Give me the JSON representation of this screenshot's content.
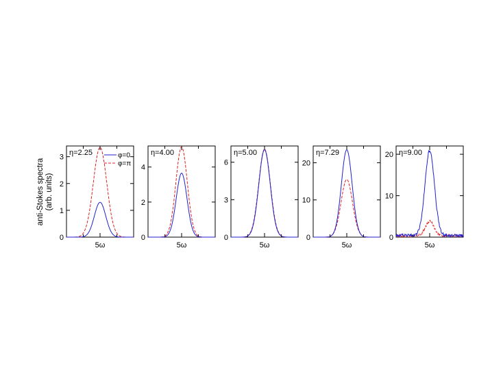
{
  "figure": {
    "ylabel_line1": "anti-Stokes spectra",
    "ylabel_line2": "(arb. units)"
  },
  "legend": {
    "phi0": "φ=0",
    "phipi": "φ=π"
  },
  "colors": {
    "phi0": "#1f1fd0",
    "phipi": "#e02020"
  },
  "chart_data": [
    {
      "type": "line",
      "title": "η=2.25",
      "xlabel": "5ω",
      "ylim": [
        0,
        3.4
      ],
      "yticks": [
        0,
        1,
        2,
        3
      ],
      "ytick_labels": [
        "0",
        "1",
        "2",
        "3"
      ],
      "xtick_labels": [
        "5ω"
      ],
      "series": [
        {
          "name": "φ=0",
          "peak": 1.3,
          "width": 0.085,
          "noise": 0
        },
        {
          "name": "φ=π",
          "peak": 3.35,
          "width": 0.1,
          "noise": 0
        }
      ]
    },
    {
      "type": "line",
      "title": "η=4.00",
      "xlabel": "5ω",
      "ylim": [
        0,
        5.2
      ],
      "yticks": [
        0,
        2,
        4
      ],
      "ytick_labels": [
        "0",
        "2",
        "4"
      ],
      "xtick_labels": [
        "5ω"
      ],
      "series": [
        {
          "name": "φ=0",
          "peak": 3.65,
          "width": 0.08,
          "noise": 0
        },
        {
          "name": "φ=π",
          "peak": 5.15,
          "width": 0.085,
          "noise": 0
        }
      ]
    },
    {
      "type": "line",
      "title": "η=5.00",
      "xlabel": "5ω",
      "ylim": [
        0,
        7.3
      ],
      "yticks": [
        0,
        3,
        6
      ],
      "ytick_labels": [
        "0",
        "3",
        "6"
      ],
      "xtick_labels": [
        "5ω"
      ],
      "series": [
        {
          "name": "φ=0",
          "peak": 7.0,
          "width": 0.085,
          "noise": 0
        },
        {
          "name": "φ=π",
          "peak": 7.05,
          "width": 0.087,
          "noise": 0
        }
      ]
    },
    {
      "type": "line",
      "title": "η=7.29",
      "xlabel": "5ω",
      "ylim": [
        0,
        24.5
      ],
      "yticks": [
        0,
        10,
        20
      ],
      "ytick_labels": [
        "0",
        "10",
        "20"
      ],
      "xtick_labels": [
        "5ω"
      ],
      "series": [
        {
          "name": "φ=0",
          "peak": 23.5,
          "width": 0.08,
          "noise": 0
        },
        {
          "name": "φ=π",
          "peak": 15.5,
          "width": 0.085,
          "noise": 0
        }
      ]
    },
    {
      "type": "line",
      "title": "η=9.00",
      "xlabel": "5ω",
      "ylim": [
        0,
        22
      ],
      "yticks": [
        0,
        10,
        20
      ],
      "ytick_labels": [
        "0",
        "10",
        "20"
      ],
      "xtick_labels": [
        "5ω"
      ],
      "series": [
        {
          "name": "φ=0",
          "peak": 20.5,
          "width": 0.07,
          "noise": 0.35,
          "baseline": 0.4
        },
        {
          "name": "φ=π",
          "peak": 3.5,
          "width": 0.065,
          "noise": 0.3,
          "baseline": 0.3
        }
      ]
    }
  ]
}
